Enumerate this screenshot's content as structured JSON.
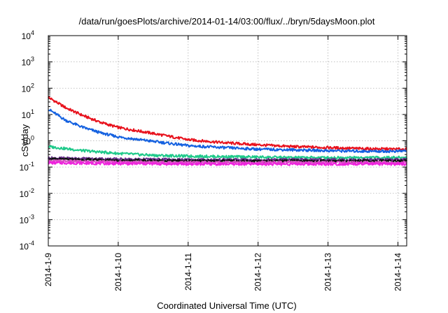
{
  "chart_data": {
    "type": "line",
    "title": "/data/run/goesPlots/archive/2014-01-14/03:00/flux/../bryn/5daysMoon.plot",
    "xlabel": "Coordinated Universal Time (UTC)",
    "ylabel": "cSv/day",
    "yscale": "log",
    "ylim": [
      0.0001,
      10000
    ],
    "xlim": [
      "2014-01-09T00:00",
      "2014-01-14T03:00"
    ],
    "grid": true,
    "legend": "none",
    "x_ticks": [
      "2014-1-9",
      "2014-1-10",
      "2014-1-11",
      "2014-1-12",
      "2014-1-13",
      "2014-1-14"
    ],
    "y_ticks": [
      {
        "value": 0.0001,
        "base": "10",
        "exp": "-4"
      },
      {
        "value": 0.001,
        "base": "10",
        "exp": "-3"
      },
      {
        "value": 0.01,
        "base": "10",
        "exp": "-2"
      },
      {
        "value": 0.1,
        "base": "10",
        "exp": "-1"
      },
      {
        "value": 1,
        "base": "10",
        "exp": "0"
      },
      {
        "value": 10,
        "base": "10",
        "exp": "1"
      },
      {
        "value": 100,
        "base": "10",
        "exp": "2"
      },
      {
        "value": 1000,
        "base": "10",
        "exp": "3"
      },
      {
        "value": 10000,
        "base": "10",
        "exp": "4"
      }
    ],
    "series": [
      {
        "color": "#e8121d",
        "x": [
          "2014-01-09T00:00",
          "2014-01-09T06:00",
          "2014-01-09T12:00",
          "2014-01-09T18:00",
          "2014-01-10T00:00",
          "2014-01-10T12:00",
          "2014-01-11T00:00",
          "2014-01-11T12:00",
          "2014-01-12T00:00",
          "2014-01-12T12:00",
          "2014-01-13T00:00",
          "2014-01-13T12:00",
          "2014-01-14T00:00",
          "2014-01-14T03:00"
        ],
        "values": [
          45,
          18,
          9,
          5,
          3.2,
          1.9,
          1.1,
          0.85,
          0.7,
          0.6,
          0.55,
          0.5,
          0.48,
          0.48
        ]
      },
      {
        "color": "#1461e0",
        "x": [
          "2014-01-09T00:00",
          "2014-01-09T06:00",
          "2014-01-09T12:00",
          "2014-01-09T18:00",
          "2014-01-10T00:00",
          "2014-01-10T12:00",
          "2014-01-11T00:00",
          "2014-01-11T12:00",
          "2014-01-12T00:00",
          "2014-01-12T12:00",
          "2014-01-13T00:00",
          "2014-01-13T12:00",
          "2014-01-14T00:00",
          "2014-01-14T03:00"
        ],
        "values": [
          16,
          6,
          3.2,
          2,
          1.4,
          0.95,
          0.65,
          0.55,
          0.48,
          0.45,
          0.42,
          0.4,
          0.4,
          0.42
        ]
      },
      {
        "color": "#1fc98a",
        "x": [
          "2014-01-09T00:00",
          "2014-01-09T12:00",
          "2014-01-10T00:00",
          "2014-01-10T12:00",
          "2014-01-11T00:00",
          "2014-01-11T12:00",
          "2014-01-12T00:00",
          "2014-01-12T12:00",
          "2014-01-13T00:00",
          "2014-01-13T12:00",
          "2014-01-14T00:00",
          "2014-01-14T03:00"
        ],
        "values": [
          0.6,
          0.42,
          0.33,
          0.28,
          0.26,
          0.25,
          0.24,
          0.23,
          0.23,
          0.23,
          0.23,
          0.23
        ]
      },
      {
        "color": "#6a2f8e",
        "x": [
          "2014-01-09T00:00",
          "2014-01-10T00:00",
          "2014-01-11T00:00",
          "2014-01-12T00:00",
          "2014-01-13T00:00",
          "2014-01-14T00:00",
          "2014-01-14T03:00"
        ],
        "values": [
          0.22,
          0.2,
          0.19,
          0.19,
          0.19,
          0.19,
          0.19
        ]
      },
      {
        "color": "#111111",
        "x": [
          "2014-01-09T00:00",
          "2014-01-10T00:00",
          "2014-01-11T00:00",
          "2014-01-12T00:00",
          "2014-01-13T00:00",
          "2014-01-14T00:00",
          "2014-01-14T03:00"
        ],
        "values": [
          0.2,
          0.18,
          0.17,
          0.17,
          0.17,
          0.17,
          0.17
        ]
      },
      {
        "color": "#d94fc4",
        "x": [
          "2014-01-09T00:00",
          "2014-01-10T00:00",
          "2014-01-11T00:00",
          "2014-01-12T00:00",
          "2014-01-13T00:00",
          "2014-01-14T00:00",
          "2014-01-14T03:00"
        ],
        "values": [
          0.17,
          0.155,
          0.15,
          0.15,
          0.15,
          0.15,
          0.15
        ]
      },
      {
        "color": "#ee22dd",
        "x": [
          "2014-01-09T00:00",
          "2014-01-10T00:00",
          "2014-01-11T00:00",
          "2014-01-12T00:00",
          "2014-01-13T00:00",
          "2014-01-14T00:00",
          "2014-01-14T03:00"
        ],
        "values": [
          0.145,
          0.135,
          0.13,
          0.13,
          0.13,
          0.13,
          0.13
        ]
      }
    ]
  }
}
